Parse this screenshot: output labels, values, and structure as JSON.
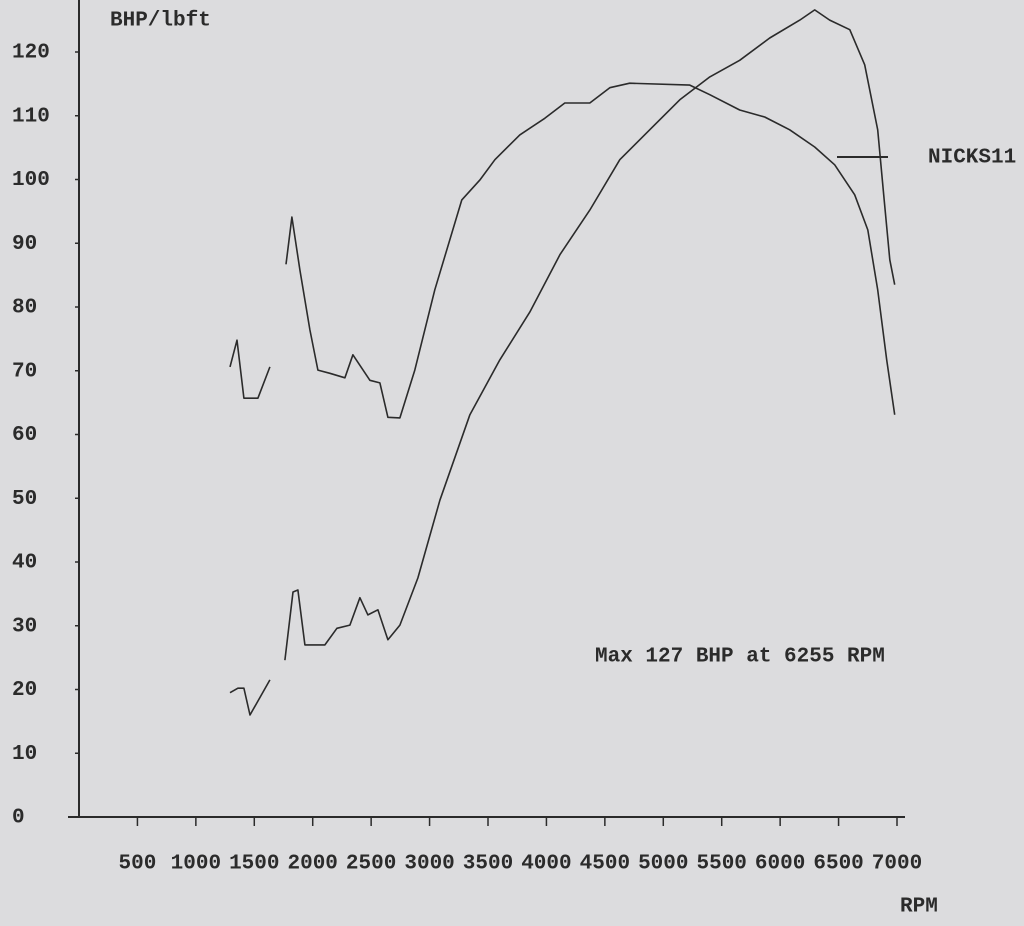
{
  "chart_data": {
    "type": "line",
    "y_label": "BHP/lbft",
    "x_label": "RPM",
    "annotation": "Max 127 BHP at 6255 RPM",
    "run_label": "NICKS11",
    "color": "#2b2b2b",
    "xlim": [
      0,
      7000
    ],
    "ylim": [
      0,
      128
    ],
    "xticks": [
      500,
      1000,
      1500,
      2000,
      2500,
      3000,
      3500,
      4000,
      4500,
      5000,
      5500,
      6000,
      6500,
      7000
    ],
    "yticks": [
      0,
      10,
      20,
      30,
      40,
      50,
      60,
      70,
      80,
      90,
      100,
      110,
      120
    ],
    "series": [
      {
        "x": [
          1292,
          1352,
          1411,
          1531,
          1634,
          1700,
          1771,
          1822,
          1890,
          1976,
          2044,
          2147,
          2275,
          2344,
          2489,
          2575,
          2643,
          2746,
          2874,
          3045,
          3276,
          3430,
          3559,
          3772,
          3986,
          4157,
          4371,
          4542,
          4713,
          5227,
          5398,
          5654,
          5868,
          6082,
          6296,
          6467,
          6638,
          6750,
          6835,
          6912,
          6980
        ],
        "values": [
          70.6,
          74.8,
          65.7,
          65.7,
          70.6,
          null,
          86.7,
          94.1,
          85.8,
          76.4,
          70.1,
          69.6,
          68.9,
          72.5,
          68.5,
          68.1,
          62.7,
          62.6,
          70.1,
          82.7,
          96.8,
          99.9,
          103.1,
          107,
          109.6,
          112,
          112,
          114.4,
          115.1,
          114.8,
          113.3,
          110.9,
          109.8,
          107.8,
          105.1,
          102.3,
          97.6,
          92.1,
          82.7,
          71.7,
          63.1
        ]
      },
      {
        "x": [
          1292,
          1360,
          1411,
          1463,
          1634,
          1700,
          1762,
          1831,
          1873,
          1933,
          2104,
          2207,
          2318,
          2404,
          2472,
          2558,
          2643,
          2746,
          2900,
          3088,
          3345,
          3601,
          3858,
          4115,
          4371,
          4628,
          4884,
          5141,
          5398,
          5654,
          5911,
          6168,
          6296,
          6424,
          6596,
          6724,
          6835,
          6886,
          6938,
          6980
        ],
        "values": [
          19.5,
          20.2,
          20.2,
          16,
          21.5,
          null,
          24.6,
          35.3,
          35.6,
          27,
          27,
          29.6,
          30.1,
          34.4,
          31.7,
          32.5,
          27.8,
          30.1,
          37.5,
          49.7,
          63.1,
          71.7,
          79.2,
          88.2,
          95.2,
          103.1,
          107.8,
          112.5,
          116.1,
          118.7,
          122.2,
          125,
          126.6,
          125,
          123.5,
          118,
          107.8,
          97.6,
          87.4,
          83.5
        ]
      }
    ]
  }
}
